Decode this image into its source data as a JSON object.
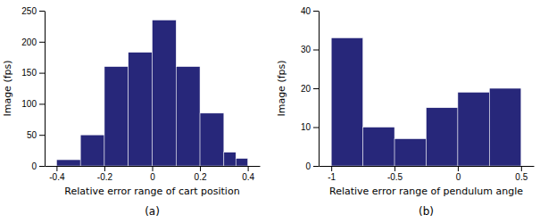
{
  "chart_data": [
    {
      "type": "histogram",
      "bins": [
        -0.4,
        -0.3,
        -0.2,
        -0.1,
        0.0,
        0.1,
        0.2,
        0.3,
        0.35,
        0.4
      ],
      "values": [
        10,
        50,
        160,
        183,
        235,
        160,
        85,
        22,
        12
      ],
      "color": "#27277a",
      "xlim": [
        -0.45,
        0.45
      ],
      "xticks": [
        -0.4,
        -0.2,
        0,
        0.2,
        0.4
      ],
      "ylim": [
        0,
        250
      ],
      "yticks": [
        0,
        50,
        100,
        150,
        200,
        250
      ],
      "x_label": "Relative error range of cart position",
      "y_label": "Image (fps)",
      "annotations": [
        "(a)"
      ],
      "grid": false
    },
    {
      "type": "histogram",
      "bins": [
        -1.0,
        -0.75,
        -0.5,
        -0.25,
        0.0,
        0.25,
        0.5
      ],
      "values": [
        33,
        10,
        7,
        15,
        19,
        20
      ],
      "color": "#27277a",
      "xlim": [
        -1.1,
        0.6
      ],
      "xticks": [
        -1,
        -0.5,
        0,
        0.5
      ],
      "ylim": [
        0,
        40
      ],
      "yticks": [
        0,
        10,
        20,
        30,
        40
      ],
      "x_label": "Relative error range of pendulum angle",
      "y_label": "Image (fps)",
      "annotations": [
        "(b)"
      ],
      "grid": false
    }
  ]
}
